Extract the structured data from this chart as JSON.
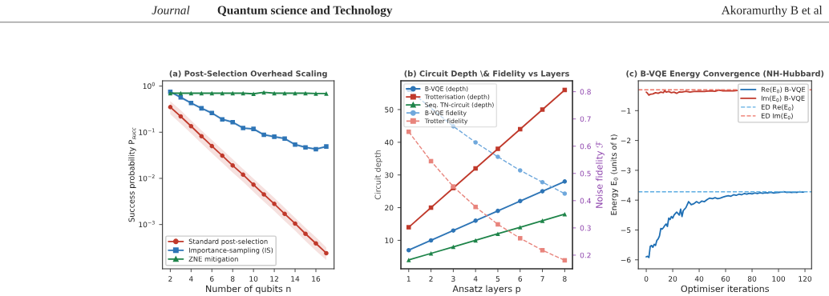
{
  "chart_data": [
    {
      "type": "line",
      "title": "(a) Post-Selection Overhead Scaling",
      "xlabel": "Number of qubits n",
      "ylabel": "Success probability P$_{succ}$",
      "annotations": [
        "Journal",
        "Quantum science and Technology",
        "Akoramurthy B et al"
      ],
      "x": [
        2,
        3,
        4,
        5,
        6,
        7,
        8,
        9,
        10,
        11,
        12,
        13,
        14,
        15,
        16,
        17
      ],
      "log": "y",
      "xlim": [
        1.25,
        17.75
      ],
      "ylim": [
        0.00011,
        1.3
      ],
      "xticks": [
        2,
        4,
        6,
        8,
        10,
        12,
        14,
        16
      ],
      "yticks": [
        {
          "value": 1,
          "label": "10$^{0}$"
        },
        {
          "value": 0.1,
          "label": "10$^{−1}$"
        },
        {
          "value": 0.01,
          "label": "10$^{−2}$"
        },
        {
          "value": 0.001,
          "label": "10$^{−3}$"
        }
      ],
      "legend": "bottom left",
      "grid": false,
      "series": [
        {
          "name": "Standard post-selection",
          "color": "#c0392b",
          "marker": "circle",
          "values": [
            0.35,
            0.22,
            0.135,
            0.082,
            0.05,
            0.031,
            0.019,
            0.012,
            0.0073,
            0.0045,
            0.0028,
            0.0017,
            0.00105,
            0.00063,
            0.00039,
            0.00024
          ],
          "lower": [
            0.245,
            0.154,
            0.0945,
            0.0574,
            0.035,
            0.0217,
            0.0133,
            0.0084,
            0.0051,
            0.00315,
            0.00196,
            0.00119,
            0.00074,
            0.00044,
            0.00027,
            0.00017
          ],
          "upper": [
            0.47,
            0.3,
            0.18,
            0.11,
            0.068,
            0.042,
            0.026,
            0.016,
            0.0099,
            0.0061,
            0.0038,
            0.0023,
            0.0014,
            0.00085,
            0.00053,
            0.00032
          ]
        },
        {
          "name": "Importance-sampling (IS)",
          "color": "#2e75b6",
          "marker": "square",
          "values": [
            0.75,
            0.57,
            0.43,
            0.33,
            0.26,
            0.19,
            0.165,
            0.123,
            0.118,
            0.088,
            0.08,
            0.073,
            0.054,
            0.047,
            0.043,
            0.049
          ],
          "lower": [
            0.7,
            0.53,
            0.4,
            0.31,
            0.24,
            0.177,
            0.153,
            0.114,
            0.11,
            0.082,
            0.074,
            0.068,
            0.05,
            0.044,
            0.04,
            0.046
          ],
          "upper": [
            0.8,
            0.61,
            0.46,
            0.35,
            0.28,
            0.203,
            0.177,
            0.132,
            0.126,
            0.094,
            0.086,
            0.078,
            0.058,
            0.05,
            0.046,
            0.052
          ]
        },
        {
          "name": "ZNE mitigation",
          "color": "#1e8449",
          "marker": "triangle",
          "values": [
            0.7,
            0.7,
            0.7,
            0.7,
            0.7,
            0.7,
            0.7,
            0.7,
            0.68,
            0.73,
            0.7,
            0.7,
            0.7,
            0.7,
            0.69,
            0.69
          ]
        }
      ]
    },
    {
      "type": "line",
      "title": "(b) Circuit Depth \\& Fidelity vs Layers",
      "xlabel": "Ansatz layers p",
      "ylabel": "Circuit depth",
      "y2label": "Noise fidelity ℱ",
      "x": [
        1,
        2,
        3,
        4,
        5,
        6,
        7,
        8
      ],
      "xlim": [
        0.65,
        8.35
      ],
      "ylim": [
        1.3,
        58.8
      ],
      "y2lim": [
        0.15,
        0.84
      ],
      "xticks": [
        1,
        2,
        3,
        4,
        5,
        6,
        7,
        8
      ],
      "yticks": [
        10,
        20,
        30,
        40,
        50
      ],
      "y2ticks": [
        0.2,
        0.3,
        0.4,
        0.5,
        0.6,
        0.7,
        0.8
      ],
      "legend": "top left",
      "grid": false,
      "series": [
        {
          "name": "B-VQE (depth)",
          "color": "#2e75b6",
          "marker": "circle",
          "line_style": "solid",
          "values": [
            7,
            10,
            13,
            16,
            19,
            22,
            25,
            28
          ]
        },
        {
          "name": "Trotterisation (depth)",
          "color": "#c0392b",
          "marker": "square",
          "line_style": "solid",
          "values": [
            14,
            20,
            26,
            32,
            38,
            44,
            50,
            56
          ]
        },
        {
          "name": "Seq. TN-circuit (depth)",
          "color": "#1e8449",
          "marker": "triangle",
          "line_style": "solid",
          "values": [
            4,
            6,
            8,
            10,
            12,
            14,
            16,
            18
          ]
        },
        {
          "name": "B-VQE fidelity",
          "color": "#6fa8dc",
          "marker": "circle",
          "line_style": "dashed",
          "axis": "y2",
          "values": [
            0.807,
            null,
            0.673,
            0.614,
            0.561,
            0.511,
            0.468,
            0.426
          ]
        },
        {
          "name": "Trotter fidelity",
          "color": "#e8847c",
          "marker": "square",
          "line_style": "dashed",
          "axis": "y2",
          "values": [
            0.653,
            0.545,
            0.452,
            0.377,
            0.313,
            0.262,
            0.218,
            0.181
          ]
        }
      ]
    },
    {
      "type": "line",
      "title": "(c) B-VQE Energy Convergence (NH-Hubbard)",
      "xlabel": "Optimiser iterations",
      "ylabel": "Energy E$_{0}$ (units of t)",
      "xlim": [
        -6,
        125
      ],
      "ylim": [
        -6.3,
        0.0
      ],
      "xticks": [
        0,
        20,
        40,
        60,
        80,
        100,
        120
      ],
      "yticks": [
        {
          "value": -1,
          "label": "−1"
        },
        {
          "value": -2,
          "label": "−2"
        },
        {
          "value": -3,
          "label": "−3"
        },
        {
          "value": -4,
          "label": "−4"
        },
        {
          "value": -5,
          "label": "−5"
        },
        {
          "value": -6,
          "label": "−6"
        }
      ],
      "legend": "top right",
      "grid": false,
      "marker": "none",
      "series": [
        {
          "name": "Re(E$_{0}$) B-VQE",
          "color": "#1f6fb4",
          "x": [
            0,
            1,
            2,
            3,
            4,
            5,
            6,
            7,
            8,
            9,
            10,
            11,
            12,
            13,
            14,
            15,
            16,
            17,
            18,
            19,
            20,
            21,
            22,
            23,
            24,
            25,
            26,
            27,
            28,
            29,
            30,
            32,
            34,
            36,
            38,
            40,
            42,
            44,
            46,
            48,
            50,
            52,
            54,
            56,
            58,
            60,
            62,
            64,
            66,
            68,
            70,
            72,
            74,
            76,
            78,
            80,
            82,
            84,
            86,
            88,
            90,
            92,
            94,
            96,
            98,
            100,
            102,
            104,
            106,
            108,
            110,
            112,
            114,
            116,
            118,
            119
          ],
          "values": [
            -5.9,
            -5.88,
            -5.92,
            -5.55,
            -5.52,
            -5.58,
            -5.48,
            -5.52,
            -5.35,
            -5.3,
            -5.2,
            -4.95,
            -4.97,
            -4.92,
            -4.85,
            -4.8,
            -4.88,
            -4.6,
            -4.65,
            -4.55,
            -4.6,
            -4.5,
            -4.45,
            -4.4,
            -4.45,
            -4.5,
            -4.3,
            -4.55,
            -4.35,
            -4.3,
            -4.25,
            -4.05,
            -4.15,
            -4.12,
            -4.05,
            -4.1,
            -4.03,
            -4.05,
            -3.98,
            -3.93,
            -3.95,
            -3.92,
            -3.95,
            -3.93,
            -3.9,
            -3.87,
            -3.85,
            -3.87,
            -3.82,
            -3.84,
            -3.8,
            -3.82,
            -3.78,
            -3.8,
            -3.77,
            -3.79,
            -3.76,
            -3.78,
            -3.75,
            -3.77,
            -3.75,
            -3.76,
            -3.74,
            -3.76,
            -3.75,
            -3.74,
            -3.73,
            -3.72,
            -3.74,
            -3.73,
            -3.74,
            -3.73,
            -3.74,
            -3.72,
            -3.73,
            -3.73
          ]
        },
        {
          "name": "Im(E$_{0}$) B-VQE",
          "color": "#c0392b",
          "x": [
            0,
            1,
            2,
            3,
            5,
            7,
            9,
            11,
            13,
            14,
            15,
            17,
            19,
            21,
            23,
            25,
            27,
            30,
            33,
            36,
            40,
            44,
            48,
            52,
            55,
            58,
            62,
            66,
            70
          ],
          "values": [
            -0.38,
            -0.42,
            -0.48,
            -0.45,
            -0.44,
            -0.4,
            -0.42,
            -0.38,
            -0.4,
            -0.32,
            -0.38,
            -0.36,
            -0.4,
            -0.38,
            -0.42,
            -0.37,
            -0.38,
            -0.35,
            -0.38,
            -0.36,
            -0.35,
            -0.36,
            -0.34,
            -0.35,
            -0.31,
            -0.34,
            -0.33,
            -0.34,
            -0.32
          ]
        }
      ],
      "ref_lines": [
        {
          "axis": "y",
          "value": -3.72,
          "label": "ED Re(E$_{0}$)",
          "color": "#5dade2",
          "line_style": "dashed"
        },
        {
          "axis": "y",
          "value": -0.3,
          "label": "ED Im(E$_{0}$)",
          "color": "#ec7063",
          "line_style": "dashed"
        }
      ]
    }
  ]
}
